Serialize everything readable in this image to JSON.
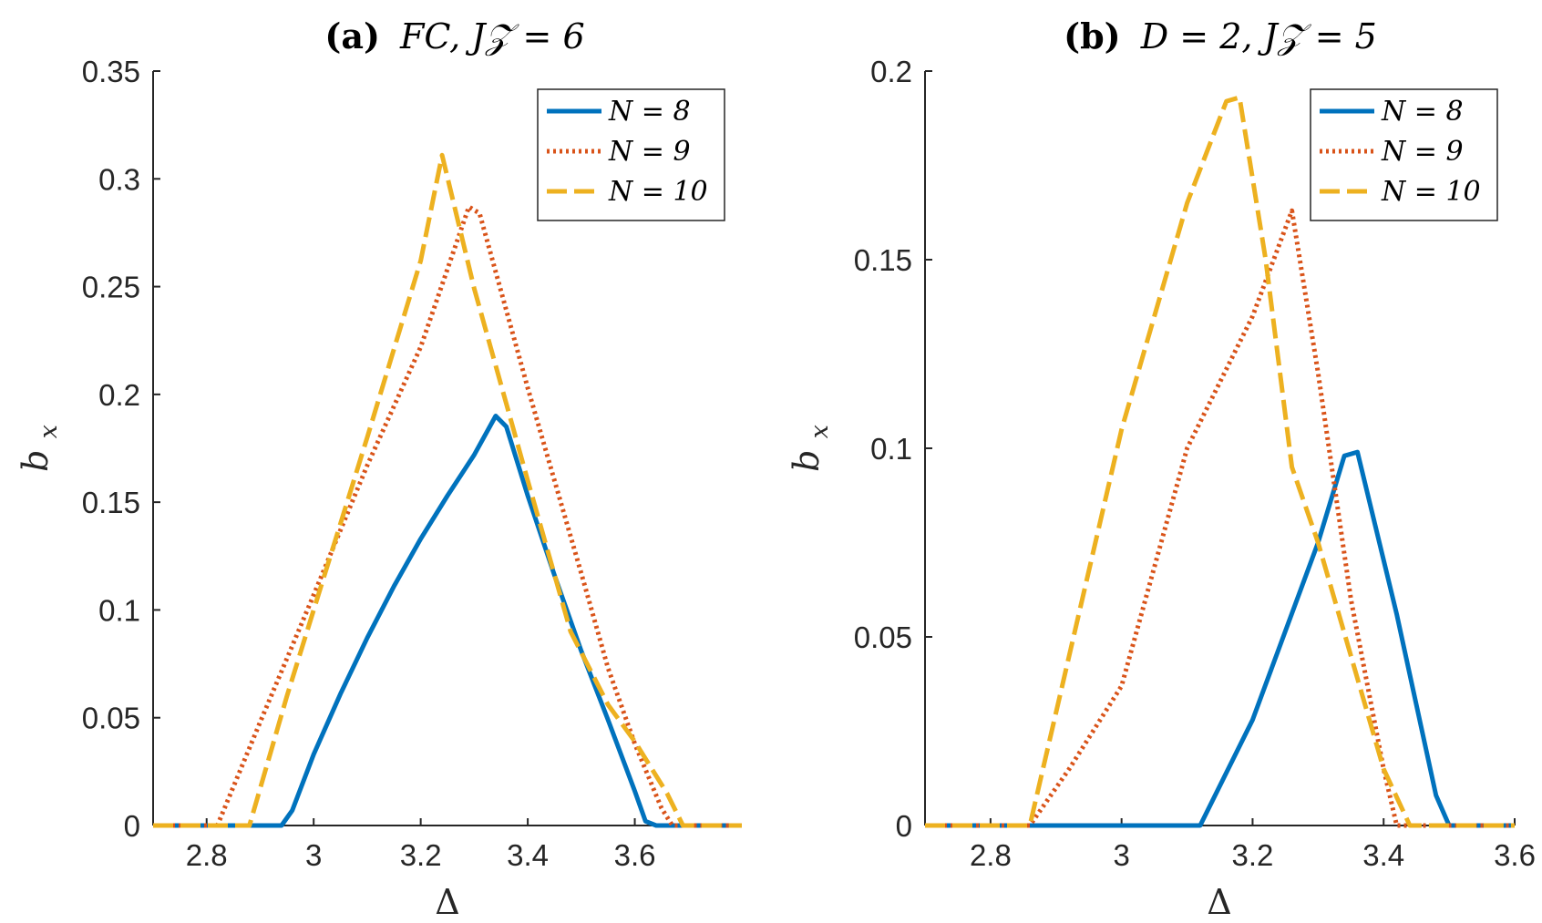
{
  "chart_data": [
    {
      "type": "line",
      "title": "(a) FC, J𝒵 = 6",
      "title_prefix": "(a)",
      "title_text": "FC, J𝒵 = 6",
      "xlabel": "Δ",
      "ylabel": "b_x",
      "ylabel_main": "b",
      "ylabel_sub": "x",
      "xlim": [
        2.7,
        3.8
      ],
      "ylim": [
        0,
        0.35
      ],
      "xticks": [
        "2.8",
        "3",
        "3.2",
        "3.4",
        "3.6"
      ],
      "xtick_values": [
        2.8,
        3.0,
        3.2,
        3.4,
        3.6
      ],
      "yticks": [
        "0",
        "0.05",
        "0.1",
        "0.15",
        "0.2",
        "0.25",
        "0.3",
        "0.35"
      ],
      "ytick_values": [
        0,
        0.05,
        0.1,
        0.15,
        0.2,
        0.25,
        0.3,
        0.35
      ],
      "legend_position": "top-right",
      "series": [
        {
          "name": "N = 8",
          "label": "N = 8",
          "color": "#0072BD",
          "style": "solid",
          "x": [
            2.7,
            2.94,
            2.96,
            3.0,
            3.05,
            3.1,
            3.15,
            3.2,
            3.25,
            3.3,
            3.34,
            3.36,
            3.4,
            3.45,
            3.5,
            3.55,
            3.6,
            3.62,
            3.64,
            3.8
          ],
          "values": [
            0,
            0,
            0.007,
            0.033,
            0.061,
            0.087,
            0.111,
            0.133,
            0.153,
            0.172,
            0.19,
            0.185,
            0.153,
            0.116,
            0.081,
            0.049,
            0.016,
            0.002,
            0,
            0
          ]
        },
        {
          "name": "N = 9",
          "label": "N = 9",
          "color": "#D95319",
          "style": "dotted",
          "x": [
            2.7,
            2.82,
            2.9,
            3.0,
            3.1,
            3.2,
            3.29,
            3.31,
            3.4,
            3.5,
            3.55,
            3.6,
            3.65,
            3.67,
            3.8
          ],
          "values": [
            0,
            0,
            0.048,
            0.107,
            0.167,
            0.222,
            0.287,
            0.284,
            0.203,
            0.117,
            0.073,
            0.038,
            0.008,
            0,
            0
          ]
        },
        {
          "name": "N = 10",
          "label": "N = 10",
          "color": "#EDB120",
          "style": "dashed",
          "x": [
            2.7,
            2.88,
            2.95,
            3.0,
            3.1,
            3.2,
            3.24,
            3.3,
            3.4,
            3.48,
            3.55,
            3.6,
            3.66,
            3.69,
            3.8
          ],
          "values": [
            0,
            0,
            0.06,
            0.1,
            0.18,
            0.262,
            0.311,
            0.249,
            0.16,
            0.09,
            0.056,
            0.039,
            0.015,
            0,
            0
          ]
        }
      ]
    },
    {
      "type": "line",
      "title": "(b) D = 2, J𝒵 = 5",
      "title_prefix": "(b)",
      "title_text": "D = 2, J𝒵 = 5",
      "xlabel": "Δ",
      "ylabel": "b_x",
      "ylabel_main": "b",
      "ylabel_sub": "x",
      "xlim": [
        2.7,
        3.6
      ],
      "ylim": [
        0,
        0.2
      ],
      "xticks": [
        "2.8",
        "3",
        "3.2",
        "3.4",
        "3.6"
      ],
      "xtick_values": [
        2.8,
        3.0,
        3.2,
        3.4,
        3.6
      ],
      "yticks": [
        "0",
        "0.05",
        "0.1",
        "0.15",
        "0.2"
      ],
      "ytick_values": [
        0,
        0.05,
        0.1,
        0.15,
        0.2
      ],
      "legend_position": "top-right",
      "series": [
        {
          "name": "N = 8",
          "label": "N = 8",
          "color": "#0072BD",
          "style": "solid",
          "x": [
            2.7,
            3.12,
            3.2,
            3.3,
            3.34,
            3.36,
            3.42,
            3.48,
            3.5,
            3.6
          ],
          "values": [
            0,
            0,
            0.028,
            0.075,
            0.098,
            0.099,
            0.056,
            0.008,
            0,
            0
          ]
        },
        {
          "name": "N = 9",
          "label": "N = 9",
          "color": "#D95319",
          "style": "dotted",
          "x": [
            2.7,
            2.86,
            2.92,
            3.0,
            3.1,
            3.2,
            3.26,
            3.3,
            3.35,
            3.4,
            3.42,
            3.6
          ],
          "values": [
            0,
            0,
            0.015,
            0.037,
            0.1,
            0.135,
            0.163,
            0.12,
            0.06,
            0.015,
            0,
            0
          ]
        },
        {
          "name": "N = 10",
          "label": "N = 10",
          "color": "#EDB120",
          "style": "dashed",
          "x": [
            2.7,
            2.86,
            2.9,
            3.0,
            3.1,
            3.16,
            3.18,
            3.22,
            3.26,
            3.3,
            3.35,
            3.4,
            3.44,
            3.6
          ],
          "values": [
            0,
            0,
            0.03,
            0.105,
            0.165,
            0.192,
            0.193,
            0.15,
            0.095,
            0.075,
            0.045,
            0.015,
            0,
            0
          ]
        }
      ]
    }
  ]
}
